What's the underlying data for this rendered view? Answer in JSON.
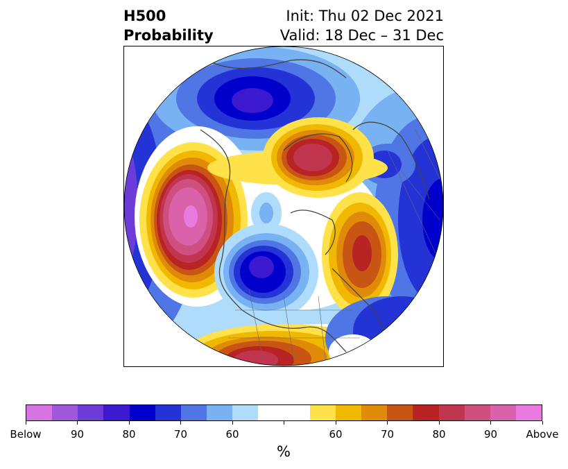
{
  "title": {
    "left_line1": "H500",
    "left_line2": "Probability",
    "right_line1": "Init: Thu 02 Dec 2021",
    "right_line2": "Valid: 18 Dec – 31 Dec"
  },
  "colorbar": {
    "colors": [
      "#d674e4",
      "#9e58dc",
      "#6d3bd8",
      "#3c19cf",
      "#0000cc",
      "#2433d6",
      "#4f76e4",
      "#79b2f2",
      "#afdcfb",
      "#ffffff",
      "#ffffff",
      "#ffe14a",
      "#f0b800",
      "#e08a0a",
      "#c95514",
      "#b82323",
      "#c2354e",
      "#cf5080",
      "#da62ab",
      "#e87ae0"
    ],
    "tick_labels": [
      "Below",
      "90",
      "80",
      "70",
      "60",
      "",
      "60",
      "70",
      "80",
      "90",
      "Above"
    ],
    "unit": "%"
  },
  "map": {
    "projection": "north-polar-stereographic",
    "variable": "500 hPa height anomaly probability",
    "anomalies": [
      {
        "region": "Gulf of Alaska / NE Pacific",
        "sign": "above",
        "peak_category": "Above"
      },
      {
        "region": "Central Canada / Hudson Bay",
        "sign": "below",
        "peak_category": "80"
      },
      {
        "region": "Southern United States",
        "sign": "above",
        "peak_category": "80"
      },
      {
        "region": "North Atlantic / Greenland",
        "sign": "above",
        "peak_category": "80"
      },
      {
        "region": "Northern Siberia",
        "sign": "above",
        "peak_category": "80"
      },
      {
        "region": "North Pacific / Eastern Asia",
        "sign": "below",
        "peak_category": "80"
      },
      {
        "region": "Western Russia / Europe",
        "sign": "below",
        "peak_category": "80"
      }
    ]
  }
}
